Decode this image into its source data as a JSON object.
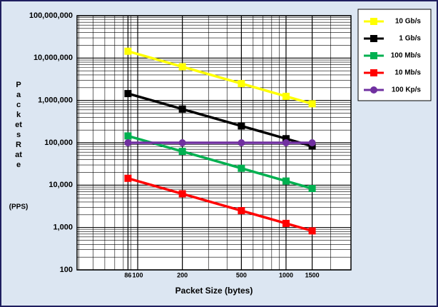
{
  "chart_data": {
    "type": "line",
    "x_label": "Packet Size (bytes)",
    "y_label": "Packets Rate",
    "y_unit": "(PPS)",
    "x": [
      86,
      200,
      500,
      1000,
      1500
    ],
    "series": [
      {
        "name": "10 Gb/s",
        "color": "#ffff00",
        "marker": "square",
        "values": [
          14500000,
          6250000,
          2500000,
          1250000,
          833000
        ]
      },
      {
        "name": "1 Gb/s",
        "color": "#000000",
        "marker": "square",
        "values": [
          1450000,
          625000,
          250000,
          125000,
          83300
        ]
      },
      {
        "name": "100 Mb/s",
        "color": "#00b050",
        "marker": "square",
        "values": [
          145000,
          62500,
          25000,
          12500,
          8330
        ]
      },
      {
        "name": "10 Mb/s",
        "color": "#ff0000",
        "marker": "square",
        "values": [
          14500,
          6250,
          2500,
          1250,
          833
        ]
      },
      {
        "name": "100 Kp/s",
        "color": "#7030a0",
        "marker": "circle",
        "values": [
          100000,
          100000,
          100000,
          100000,
          100000
        ]
      }
    ],
    "xlim": [
      39,
      2740
    ],
    "ylim": [
      100,
      100000000
    ],
    "xticks": [
      86,
      100,
      200,
      500,
      1000,
      1500
    ],
    "yticks": [
      {
        "value": 100,
        "label": "100"
      },
      {
        "value": 1000,
        "label": "1,000"
      },
      {
        "value": 10000,
        "label": "10,000"
      },
      {
        "value": 100000,
        "label": "100,000"
      },
      {
        "value": 1000000,
        "label": "1,000,000"
      },
      {
        "value": 10000000,
        "label": "10,000,000"
      },
      {
        "value": 100000000,
        "label": "100,000,000"
      }
    ],
    "xscale": "log",
    "yscale": "log",
    "grid": true,
    "minor_grid": true,
    "legend": "right"
  }
}
